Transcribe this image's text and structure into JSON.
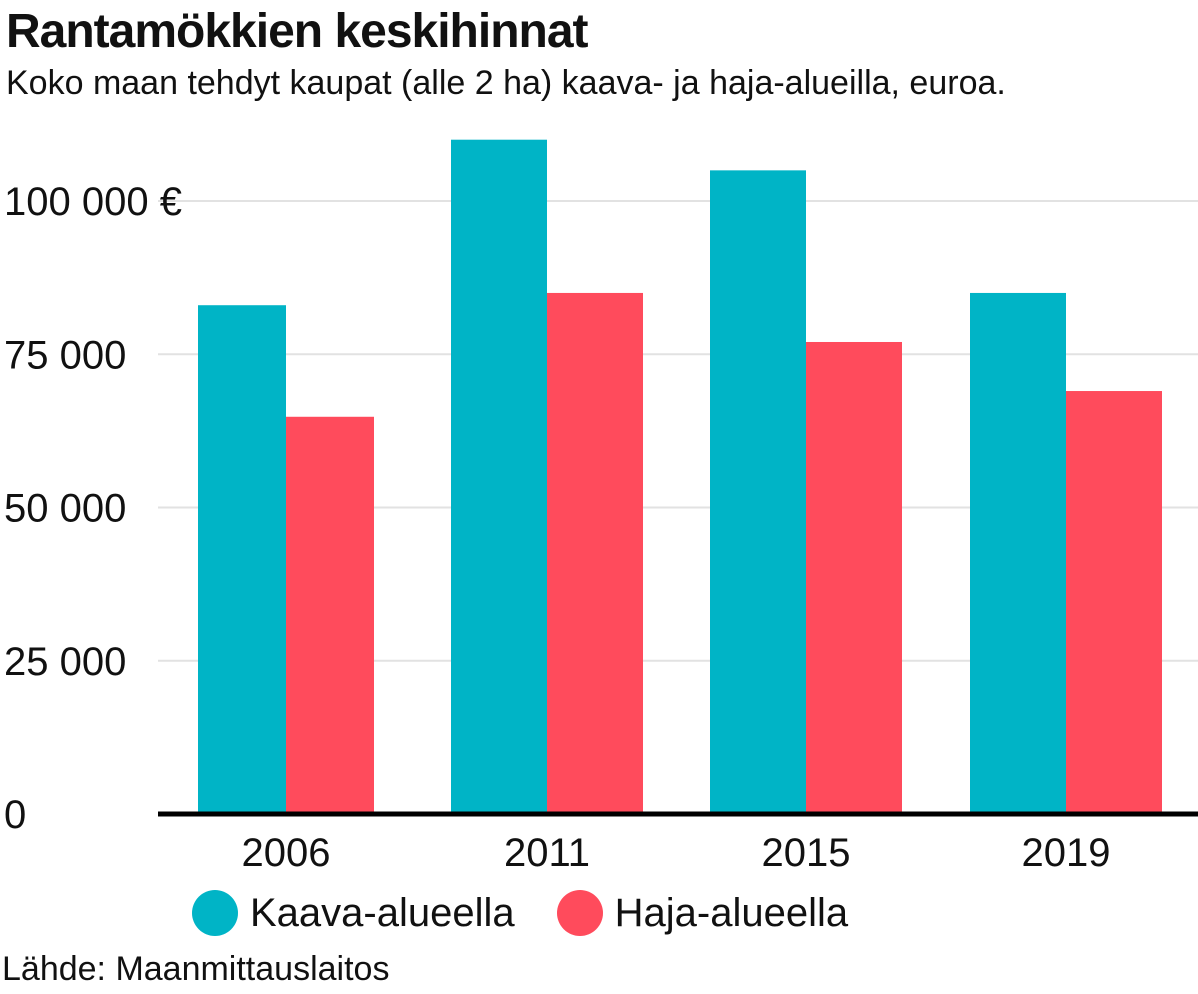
{
  "header": {
    "title": "Rantamökkien keskihinnat",
    "subtitle": "Koko maan tehdyt kaupat (alle 2 ha) kaava- ja haja-alueilla, euroa."
  },
  "source": "Lähde: Maanmittauslaitos",
  "chart_data": {
    "type": "bar",
    "categories": [
      "2006",
      "2011",
      "2015",
      "2019"
    ],
    "series": [
      {
        "name": "Kaava-alueella",
        "color": "#00b4c6",
        "values": [
          83000,
          110000,
          105000,
          85000
        ]
      },
      {
        "name": "Haja-alueella",
        "color": "#ff4b5c",
        "values": [
          64800,
          85000,
          77000,
          69000
        ]
      }
    ],
    "yticks": [
      {
        "value": 0,
        "label": "0"
      },
      {
        "value": 25000,
        "label": "25 000"
      },
      {
        "value": 50000,
        "label": "50 000"
      },
      {
        "value": 75000,
        "label": "75 000"
      },
      {
        "value": 100000,
        "label": "100 000 €"
      }
    ],
    "ylim": [
      0,
      110000
    ],
    "grid": true,
    "legend_position": "bottom"
  }
}
